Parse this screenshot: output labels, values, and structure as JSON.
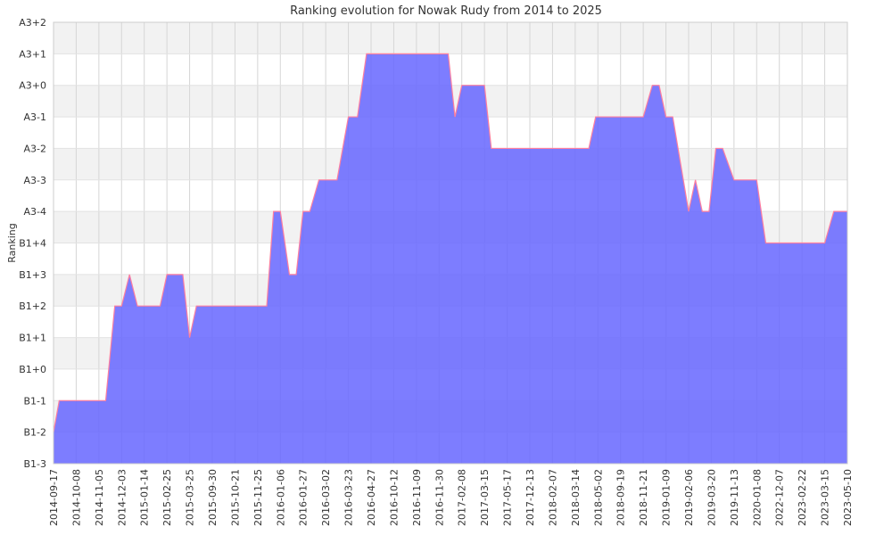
{
  "chart_data": {
    "type": "area",
    "title": "Ranking evolution for Nowak Rudy from 2014 to 2025",
    "xlabel": "",
    "ylabel": "Ranking",
    "y_levels": [
      "B1-3",
      "B1-2",
      "B1-1",
      "B1+0",
      "B1+1",
      "B1+2",
      "B1+3",
      "B1+4",
      "A3-4",
      "A3-3",
      "A3-2",
      "A3-1",
      "A3+0",
      "A3+1",
      "A3+2"
    ],
    "x_tick_labels": [
      "2014-09-17",
      "2014-10-08",
      "2014-11-05",
      "2014-12-03",
      "2015-01-14",
      "2015-02-25",
      "2015-03-25",
      "2015-09-30",
      "2015-10-21",
      "2015-11-25",
      "2016-01-06",
      "2016-01-27",
      "2016-03-02",
      "2016-03-23",
      "2016-04-27",
      "2016-10-12",
      "2016-11-09",
      "2016-11-30",
      "2017-02-08",
      "2017-03-15",
      "2017-05-17",
      "2017-12-13",
      "2018-02-07",
      "2018-03-14",
      "2018-05-02",
      "2018-09-19",
      "2018-11-21",
      "2019-01-09",
      "2019-02-06",
      "2019-03-20",
      "2019-11-13",
      "2020-01-08",
      "2022-12-07",
      "2023-02-22",
      "2023-03-15",
      "2023-05-10"
    ],
    "x_range": [
      0,
      35
    ],
    "series": [
      {
        "points": [
          [
            0,
            1
          ],
          [
            0.25,
            2
          ],
          [
            1,
            2
          ],
          [
            2,
            2
          ],
          [
            2.3,
            2
          ],
          [
            2.7,
            5
          ],
          [
            3,
            5
          ],
          [
            3.35,
            6
          ],
          [
            3.7,
            5
          ],
          [
            4,
            5
          ],
          [
            4.7,
            5
          ],
          [
            5,
            6
          ],
          [
            5.7,
            6
          ],
          [
            6,
            4
          ],
          [
            6.3,
            5
          ],
          [
            7,
            5
          ],
          [
            8,
            5
          ],
          [
            9,
            5
          ],
          [
            9.4,
            5
          ],
          [
            9.7,
            8
          ],
          [
            10,
            8
          ],
          [
            10.4,
            6
          ],
          [
            10.7,
            6
          ],
          [
            11,
            8
          ],
          [
            11.3,
            8
          ],
          [
            11.7,
            9
          ],
          [
            12,
            9
          ],
          [
            12.5,
            9
          ],
          [
            13,
            11
          ],
          [
            13.4,
            11
          ],
          [
            13.8,
            13
          ],
          [
            14,
            13
          ],
          [
            15,
            13
          ],
          [
            16,
            13
          ],
          [
            17,
            13
          ],
          [
            17.4,
            13
          ],
          [
            17.7,
            11
          ],
          [
            18,
            12
          ],
          [
            19,
            12
          ],
          [
            19.3,
            10
          ],
          [
            20,
            10
          ],
          [
            21,
            10
          ],
          [
            22,
            10
          ],
          [
            23,
            10
          ],
          [
            23.6,
            10
          ],
          [
            23.9,
            11
          ],
          [
            24,
            11
          ],
          [
            25,
            11
          ],
          [
            26,
            11
          ],
          [
            26.4,
            12
          ],
          [
            26.7,
            12
          ],
          [
            27,
            11
          ],
          [
            27.3,
            11
          ],
          [
            28,
            8
          ],
          [
            28.3,
            9
          ],
          [
            28.6,
            8
          ],
          [
            28.9,
            8
          ],
          [
            29.2,
            10
          ],
          [
            29.5,
            10
          ],
          [
            30,
            9
          ],
          [
            30.5,
            9
          ],
          [
            31,
            9
          ],
          [
            31.4,
            7
          ],
          [
            32,
            7
          ],
          [
            33,
            7
          ],
          [
            34,
            7
          ],
          [
            34.4,
            8
          ],
          [
            35,
            8
          ]
        ]
      }
    ],
    "colors": {
      "area_fill": "#6666ff",
      "area_line": "#ff7f9f",
      "band_shaded": "#f2f2f2",
      "grid": "#d6d6d6"
    },
    "grid": true,
    "legend": "none"
  }
}
